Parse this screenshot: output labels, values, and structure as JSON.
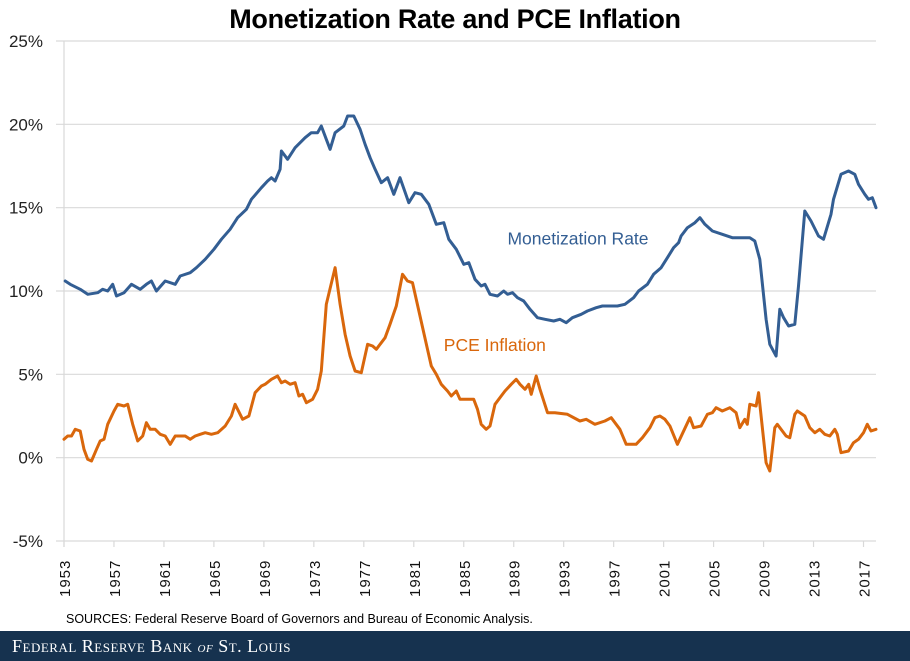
{
  "chart_data": {
    "type": "line",
    "title": "Monetization Rate and PCE Inflation",
    "xlabel": "",
    "ylabel": "",
    "ylim": [
      -5,
      25
    ],
    "xlim": [
      1953,
      2018
    ],
    "yticks": [
      -5,
      0,
      5,
      10,
      15,
      20,
      25
    ],
    "ytick_labels": [
      "-5%",
      "0%",
      "5%",
      "10%",
      "15%",
      "20%",
      "25%"
    ],
    "xtick_labels": [
      "1953",
      "1957",
      "1961",
      "1965",
      "1969",
      "1973",
      "1977",
      "1981",
      "1985",
      "1989",
      "1993",
      "1997",
      "2001",
      "2005",
      "2009",
      "2013",
      "2017"
    ],
    "grid": "horizontal",
    "legend": "inline labels",
    "series": [
      {
        "name": "Monetization Rate",
        "color": "#335e93",
        "label_position": {
          "x": 1988.5,
          "y": 12.8
        },
        "points": [
          [
            1953.1,
            10.6
          ],
          [
            1953.5,
            10.4
          ],
          [
            1954.3,
            10.1
          ],
          [
            1954.9,
            9.8
          ],
          [
            1955.7,
            9.9
          ],
          [
            1956.1,
            10.1
          ],
          [
            1956.5,
            10.0
          ],
          [
            1956.9,
            10.4
          ],
          [
            1957.2,
            9.7
          ],
          [
            1957.8,
            9.9
          ],
          [
            1958.4,
            10.4
          ],
          [
            1959.1,
            10.1
          ],
          [
            1959.6,
            10.4
          ],
          [
            1960.0,
            10.6
          ],
          [
            1960.4,
            10.0
          ],
          [
            1961.1,
            10.6
          ],
          [
            1961.9,
            10.4
          ],
          [
            1962.3,
            10.9
          ],
          [
            1963.1,
            11.1
          ],
          [
            1963.6,
            11.4
          ],
          [
            1964.3,
            11.9
          ],
          [
            1965.0,
            12.5
          ],
          [
            1965.6,
            13.1
          ],
          [
            1966.3,
            13.7
          ],
          [
            1966.9,
            14.4
          ],
          [
            1967.6,
            14.9
          ],
          [
            1968.0,
            15.5
          ],
          [
            1968.8,
            16.2
          ],
          [
            1969.3,
            16.6
          ],
          [
            1969.6,
            16.8
          ],
          [
            1969.9,
            16.6
          ],
          [
            1970.3,
            17.3
          ],
          [
            1970.4,
            18.4
          ],
          [
            1970.9,
            17.9
          ],
          [
            1971.5,
            18.6
          ],
          [
            1972.3,
            19.2
          ],
          [
            1972.8,
            19.5
          ],
          [
            1973.3,
            19.5
          ],
          [
            1973.6,
            19.9
          ],
          [
            1974.0,
            19.1
          ],
          [
            1974.3,
            18.5
          ],
          [
            1974.7,
            19.5
          ],
          [
            1975.4,
            19.9
          ],
          [
            1975.7,
            20.5
          ],
          [
            1976.2,
            20.5
          ],
          [
            1976.7,
            19.7
          ],
          [
            1977.1,
            18.8
          ],
          [
            1977.5,
            18.0
          ],
          [
            1977.9,
            17.3
          ],
          [
            1978.4,
            16.5
          ],
          [
            1978.9,
            16.8
          ],
          [
            1979.4,
            15.8
          ],
          [
            1979.9,
            16.8
          ],
          [
            1980.6,
            15.3
          ],
          [
            1981.1,
            15.9
          ],
          [
            1981.6,
            15.8
          ],
          [
            1982.2,
            15.2
          ],
          [
            1982.8,
            14.0
          ],
          [
            1983.4,
            14.1
          ],
          [
            1983.8,
            13.1
          ],
          [
            1984.4,
            12.5
          ],
          [
            1985.0,
            11.6
          ],
          [
            1985.4,
            11.7
          ],
          [
            1985.9,
            10.7
          ],
          [
            1986.4,
            10.3
          ],
          [
            1986.7,
            10.4
          ],
          [
            1987.1,
            9.8
          ],
          [
            1987.7,
            9.7
          ],
          [
            1988.2,
            10.0
          ],
          [
            1988.5,
            9.8
          ],
          [
            1988.9,
            9.9
          ],
          [
            1989.3,
            9.6
          ],
          [
            1989.8,
            9.4
          ],
          [
            1990.3,
            8.9
          ],
          [
            1990.9,
            8.4
          ],
          [
            1991.5,
            8.3
          ],
          [
            1992.2,
            8.2
          ],
          [
            1992.7,
            8.3
          ],
          [
            1993.2,
            8.1
          ],
          [
            1993.7,
            8.4
          ],
          [
            1994.4,
            8.6
          ],
          [
            1994.9,
            8.8
          ],
          [
            1995.6,
            9.0
          ],
          [
            1996.1,
            9.1
          ],
          [
            1996.7,
            9.1
          ],
          [
            1997.3,
            9.1
          ],
          [
            1997.9,
            9.2
          ],
          [
            1998.6,
            9.6
          ],
          [
            1999.0,
            10.0
          ],
          [
            1999.7,
            10.4
          ],
          [
            2000.2,
            11.0
          ],
          [
            2000.8,
            11.4
          ],
          [
            2001.3,
            12.0
          ],
          [
            2001.8,
            12.6
          ],
          [
            2002.2,
            12.9
          ],
          [
            2002.4,
            13.3
          ],
          [
            2002.9,
            13.8
          ],
          [
            2003.5,
            14.1
          ],
          [
            2003.9,
            14.4
          ],
          [
            2004.3,
            14.0
          ],
          [
            2004.9,
            13.6
          ],
          [
            2005.7,
            13.4
          ],
          [
            2006.5,
            13.2
          ],
          [
            2007.3,
            13.2
          ],
          [
            2007.9,
            13.2
          ],
          [
            2008.3,
            13.0
          ],
          [
            2008.7,
            11.9
          ],
          [
            2009.2,
            8.3
          ],
          [
            2009.5,
            6.8
          ],
          [
            2010.0,
            6.1
          ],
          [
            2010.3,
            8.9
          ],
          [
            2010.6,
            8.4
          ],
          [
            2011.0,
            7.9
          ],
          [
            2011.5,
            8.0
          ],
          [
            2011.8,
            10.3
          ],
          [
            2012.3,
            14.8
          ],
          [
            2012.8,
            14.2
          ],
          [
            2013.4,
            13.3
          ],
          [
            2013.8,
            13.1
          ],
          [
            2014.4,
            14.6
          ],
          [
            2014.6,
            15.5
          ],
          [
            2015.2,
            17.0
          ],
          [
            2015.8,
            17.2
          ],
          [
            2016.3,
            17.0
          ],
          [
            2016.6,
            16.4
          ],
          [
            2017.1,
            15.8
          ],
          [
            2017.4,
            15.5
          ],
          [
            2017.7,
            15.6
          ],
          [
            2018.0,
            15.0
          ]
        ]
      },
      {
        "name": "PCE Inflation",
        "color": "#d9670c",
        "label_position": {
          "x": 1983.4,
          "y": 6.4
        },
        "points": [
          [
            1953.0,
            1.1
          ],
          [
            1953.3,
            1.3
          ],
          [
            1953.6,
            1.3
          ],
          [
            1953.9,
            1.7
          ],
          [
            1954.3,
            1.6
          ],
          [
            1954.6,
            0.5
          ],
          [
            1954.9,
            -0.1
          ],
          [
            1955.2,
            -0.2
          ],
          [
            1955.6,
            0.5
          ],
          [
            1955.9,
            1.0
          ],
          [
            1956.2,
            1.1
          ],
          [
            1956.5,
            2.0
          ],
          [
            1957.0,
            2.8
          ],
          [
            1957.3,
            3.2
          ],
          [
            1957.8,
            3.1
          ],
          [
            1958.1,
            3.2
          ],
          [
            1958.5,
            2.0
          ],
          [
            1958.9,
            1.0
          ],
          [
            1959.3,
            1.3
          ],
          [
            1959.6,
            2.1
          ],
          [
            1959.9,
            1.7
          ],
          [
            1960.3,
            1.7
          ],
          [
            1960.7,
            1.4
          ],
          [
            1961.1,
            1.3
          ],
          [
            1961.5,
            0.8
          ],
          [
            1961.9,
            1.3
          ],
          [
            1962.3,
            1.3
          ],
          [
            1962.7,
            1.3
          ],
          [
            1963.1,
            1.1
          ],
          [
            1963.5,
            1.3
          ],
          [
            1963.9,
            1.4
          ],
          [
            1964.3,
            1.5
          ],
          [
            1964.8,
            1.4
          ],
          [
            1965.3,
            1.5
          ],
          [
            1965.9,
            1.9
          ],
          [
            1966.4,
            2.5
          ],
          [
            1966.7,
            3.2
          ],
          [
            1967.3,
            2.3
          ],
          [
            1967.8,
            2.5
          ],
          [
            1968.3,
            3.9
          ],
          [
            1968.8,
            4.3
          ],
          [
            1969.1,
            4.4
          ],
          [
            1969.6,
            4.7
          ],
          [
            1970.1,
            4.9
          ],
          [
            1970.4,
            4.5
          ],
          [
            1970.7,
            4.6
          ],
          [
            1971.1,
            4.4
          ],
          [
            1971.5,
            4.5
          ],
          [
            1971.8,
            3.7
          ],
          [
            1972.1,
            3.8
          ],
          [
            1972.4,
            3.3
          ],
          [
            1972.9,
            3.5
          ],
          [
            1973.3,
            4.1
          ],
          [
            1973.6,
            5.2
          ],
          [
            1974.0,
            9.2
          ],
          [
            1974.7,
            11.4
          ],
          [
            1975.1,
            9.2
          ],
          [
            1975.5,
            7.4
          ],
          [
            1975.9,
            6.1
          ],
          [
            1976.3,
            5.2
          ],
          [
            1976.8,
            5.1
          ],
          [
            1977.3,
            6.8
          ],
          [
            1977.7,
            6.7
          ],
          [
            1978.0,
            6.5
          ],
          [
            1978.7,
            7.2
          ],
          [
            1979.1,
            8.0
          ],
          [
            1979.6,
            9.1
          ],
          [
            1980.1,
            11.0
          ],
          [
            1980.5,
            10.6
          ],
          [
            1980.9,
            10.5
          ],
          [
            1981.5,
            8.5
          ],
          [
            1982.1,
            6.5
          ],
          [
            1982.4,
            5.5
          ],
          [
            1982.8,
            5.0
          ],
          [
            1983.2,
            4.4
          ],
          [
            1983.7,
            4.0
          ],
          [
            1984.0,
            3.7
          ],
          [
            1984.4,
            4.0
          ],
          [
            1984.7,
            3.5
          ],
          [
            1985.2,
            3.5
          ],
          [
            1985.8,
            3.5
          ],
          [
            1986.1,
            2.9
          ],
          [
            1986.4,
            2.0
          ],
          [
            1986.8,
            1.7
          ],
          [
            1987.1,
            1.9
          ],
          [
            1987.5,
            3.2
          ],
          [
            1988.0,
            3.7
          ],
          [
            1988.3,
            4.0
          ],
          [
            1988.8,
            4.4
          ],
          [
            1989.2,
            4.7
          ],
          [
            1989.5,
            4.4
          ],
          [
            1989.9,
            4.1
          ],
          [
            1990.2,
            4.4
          ],
          [
            1990.4,
            3.8
          ],
          [
            1990.8,
            4.9
          ],
          [
            1991.1,
            4.1
          ],
          [
            1991.7,
            2.7
          ],
          [
            1992.3,
            2.7
          ],
          [
            1993.3,
            2.6
          ],
          [
            1994.3,
            2.2
          ],
          [
            1994.8,
            2.3
          ],
          [
            1995.5,
            2.0
          ],
          [
            1996.3,
            2.2
          ],
          [
            1996.8,
            2.4
          ],
          [
            1997.5,
            1.7
          ],
          [
            1998.0,
            0.8
          ],
          [
            1998.8,
            0.8
          ],
          [
            1999.3,
            1.2
          ],
          [
            1999.9,
            1.8
          ],
          [
            2000.3,
            2.4
          ],
          [
            2000.7,
            2.5
          ],
          [
            2001.1,
            2.3
          ],
          [
            2001.5,
            1.9
          ],
          [
            2002.1,
            0.8
          ],
          [
            2003.1,
            2.4
          ],
          [
            2003.4,
            1.8
          ],
          [
            2004.0,
            1.9
          ],
          [
            2004.5,
            2.6
          ],
          [
            2004.9,
            2.7
          ],
          [
            2005.2,
            3.0
          ],
          [
            2005.7,
            2.8
          ],
          [
            2006.3,
            3.0
          ],
          [
            2006.8,
            2.7
          ],
          [
            2007.1,
            1.8
          ],
          [
            2007.5,
            2.3
          ],
          [
            2007.7,
            2.0
          ],
          [
            2007.9,
            3.2
          ],
          [
            2008.4,
            3.1
          ],
          [
            2008.6,
            3.9
          ],
          [
            2009.0,
            1.1
          ],
          [
            2009.2,
            -0.3
          ],
          [
            2009.5,
            -0.8
          ],
          [
            2009.9,
            1.8
          ],
          [
            2010.1,
            2.0
          ],
          [
            2010.8,
            1.3
          ],
          [
            2011.1,
            1.2
          ],
          [
            2011.5,
            2.6
          ],
          [
            2011.7,
            2.8
          ],
          [
            2012.3,
            2.5
          ],
          [
            2012.7,
            1.8
          ],
          [
            2013.1,
            1.5
          ],
          [
            2013.5,
            1.7
          ],
          [
            2013.9,
            1.4
          ],
          [
            2014.3,
            1.3
          ],
          [
            2014.7,
            1.7
          ],
          [
            2014.9,
            1.4
          ],
          [
            2015.2,
            0.3
          ],
          [
            2015.8,
            0.4
          ],
          [
            2016.2,
            0.9
          ],
          [
            2016.6,
            1.1
          ],
          [
            2017.0,
            1.5
          ],
          [
            2017.3,
            2.0
          ],
          [
            2017.6,
            1.6
          ],
          [
            2018.0,
            1.7
          ]
        ]
      }
    ]
  },
  "sources": "SOURCES: Federal Reserve Board of Governors  and Bureau of Economic Analysis.",
  "footer": {
    "brand_part1": "Federal Reserve Bank ",
    "brand_of": "of",
    "brand_part2": " St. Louis"
  }
}
